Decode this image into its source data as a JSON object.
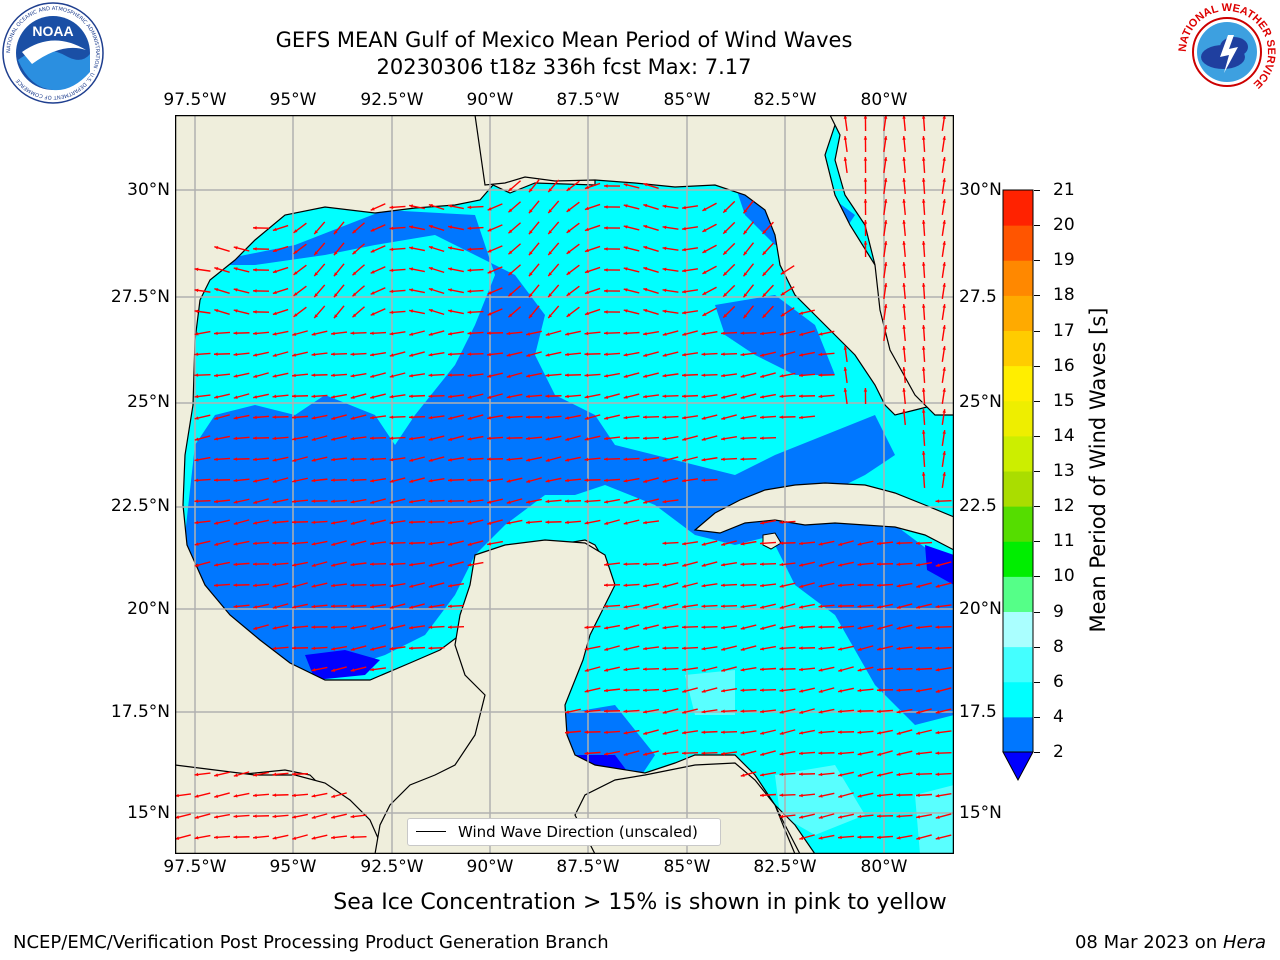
{
  "title_line1": "GEFS MEAN Gulf of Mexico Mean Period of Wind Waves",
  "title_line2": "20230306 t18z 336h fcst   Max: 7.17",
  "logos": {
    "noaa": {
      "text": "NOAA",
      "ring_text": "NATIONAL OCEANIC AND ATMOSPHERIC ADMINISTRATION · U.S. DEPARTMENT OF COMMERCE"
    },
    "nws": {
      "ring_text": "NATIONAL WEATHER SERVICE"
    }
  },
  "map": {
    "lon_ticks": [
      "97.5°W",
      "95°W",
      "92.5°W",
      "90°W",
      "87.5°W",
      "85°W",
      "82.5°W",
      "80°W"
    ],
    "lat_ticks_left": [
      "30°N",
      "27.5°N",
      "25°N",
      "22.5°N",
      "20°N",
      "17.5°N",
      "15°N"
    ],
    "lat_ticks_right": [
      "30°N",
      "27.5",
      "25°N",
      "22.5",
      "20°N",
      "17.5",
      "15°N"
    ],
    "lon_range": [
      -98,
      -78.4
    ],
    "lat_range": [
      14,
      31.8
    ],
    "legend_text": "Wind Wave Direction (unscaled)",
    "colors": {
      "land": "#efeedc",
      "coast": "#000000",
      "grid": "#b0b0b0",
      "arrow": "#ff0000"
    }
  },
  "colorbar": {
    "label": "Mean Period of Wind Waves [s]",
    "ticks": [
      "21",
      "20",
      "19",
      "18",
      "17",
      "16",
      "15",
      "14",
      "13",
      "12",
      "11",
      "10",
      "9",
      "8",
      "6",
      "4",
      "2"
    ],
    "levels": [
      2,
      4,
      6,
      8,
      9,
      10,
      11,
      12,
      13,
      14,
      15,
      16,
      17,
      18,
      19,
      20,
      21
    ],
    "colors": [
      "#0077ff",
      "#00ffff",
      "#44ffff",
      "#aaffff",
      "#55ff88",
      "#00ee00",
      "#55dd00",
      "#aadd00",
      "#ccee00",
      "#eeee00",
      "#ffee00",
      "#ffcc00",
      "#ffaa00",
      "#ff8800",
      "#ff5500",
      "#ff2200"
    ],
    "under_color": "#0000ff"
  },
  "subnote": "Sea Ice Concentration > 15% is shown in pink to yellow",
  "footer_left": "NCEP/EMC/Verification Post Processing Product Generation Branch",
  "footer_date": "08 Mar 2023 on ",
  "footer_host": "Hera"
}
